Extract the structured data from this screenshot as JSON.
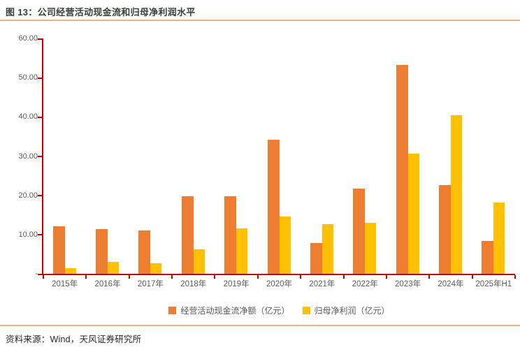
{
  "header": {
    "title": "图 13：公司经营活动现金流和归母净利润水平"
  },
  "footer": {
    "source": "资料来源：Wind，天风证券研究所"
  },
  "colors": {
    "cashflow_bar": "#ED7D31",
    "profit_bar": "#FFC000",
    "axis": "#C00000",
    "divider": "#F2B179",
    "axis_label": "#595959",
    "title_text": "#3B3B3B",
    "source_text": "#262626"
  },
  "chart_data": {
    "type": "bar",
    "title": "公司经营活动现金流和归母净利润水平",
    "xlabel": "",
    "ylabel": "",
    "ylim": [
      0,
      60
    ],
    "ytick_step": 10,
    "ytick_labels_bottom_to_top": [
      "-",
      "10.00",
      "20.00",
      "30.00",
      "40.00",
      "50.00",
      "60.00"
    ],
    "grid": false,
    "legend_position": "bottom",
    "categories": [
      "2015年",
      "2016年",
      "2017年",
      "2018年",
      "2019年",
      "2020年",
      "2021年",
      "2022年",
      "2023年",
      "2024年",
      "2025年H1"
    ],
    "series": [
      {
        "name": "经营活动现金流净额（亿元）",
        "color": "#ED7D31",
        "values": [
          12.1,
          11.4,
          11.0,
          19.7,
          19.8,
          34.1,
          7.8,
          21.7,
          53.2,
          22.7,
          8.4
        ]
      },
      {
        "name": "归母净利润（亿元）",
        "color": "#FFC000",
        "values": [
          1.5,
          3.0,
          2.6,
          6.2,
          11.6,
          14.6,
          12.7,
          13.0,
          30.7,
          40.5,
          18.1
        ]
      }
    ]
  }
}
